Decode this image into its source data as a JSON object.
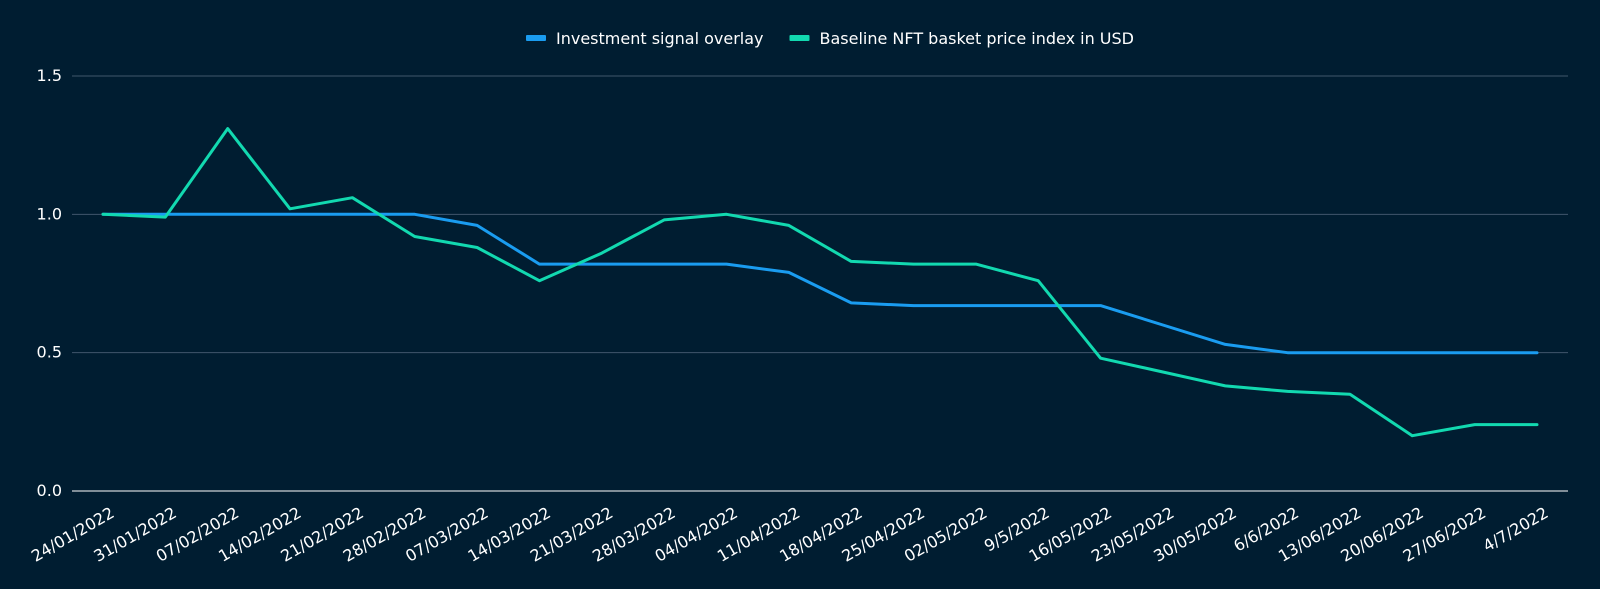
{
  "colors": {
    "background": "#001d31",
    "grid": "#40566b",
    "axis": "#ffffff",
    "text": "#ffffff"
  },
  "chart_data": {
    "type": "line",
    "title": "",
    "xlabel": "",
    "ylabel": "",
    "grid": true,
    "legend_position": "top-center",
    "ylim": [
      0,
      1.5
    ],
    "yticks": [
      "0.0",
      "0.5",
      "1.0",
      "1.5"
    ],
    "categories": [
      "24/01/2022",
      "31/01/2022",
      "07/02/2022",
      "14/02/2022",
      "21/02/2022",
      "28/02/2022",
      "07/03/2022",
      "14/03/2022",
      "21/03/2022",
      "28/03/2022",
      "04/04/2022",
      "11/04/2022",
      "18/04/2022",
      "25/04/2022",
      "02/05/2022",
      "9/5/2022",
      "16/05/2022",
      "23/05/2022",
      "30/05/2022",
      "6/6/2022",
      "13/06/2022",
      "20/06/2022",
      "27/06/2022",
      "4/7/2022"
    ],
    "series": [
      {
        "name": "Investment signal overlay",
        "color": "#1a9cf0",
        "values": [
          1.0,
          1.0,
          1.0,
          1.0,
          1.0,
          1.0,
          0.96,
          0.82,
          0.82,
          0.82,
          0.82,
          0.79,
          0.68,
          0.67,
          0.67,
          0.67,
          0.67,
          0.6,
          0.53,
          0.5,
          0.5,
          0.5,
          0.5,
          0.5
        ]
      },
      {
        "name": "Baseline NFT basket price index in USD",
        "color": "#12d9b0",
        "values": [
          1.0,
          0.99,
          1.31,
          1.02,
          1.06,
          0.92,
          0.88,
          0.76,
          0.86,
          0.98,
          1.0,
          0.96,
          0.83,
          0.82,
          0.82,
          0.76,
          0.48,
          0.43,
          0.38,
          0.36,
          0.35,
          0.2,
          0.24,
          0.24
        ]
      }
    ]
  }
}
